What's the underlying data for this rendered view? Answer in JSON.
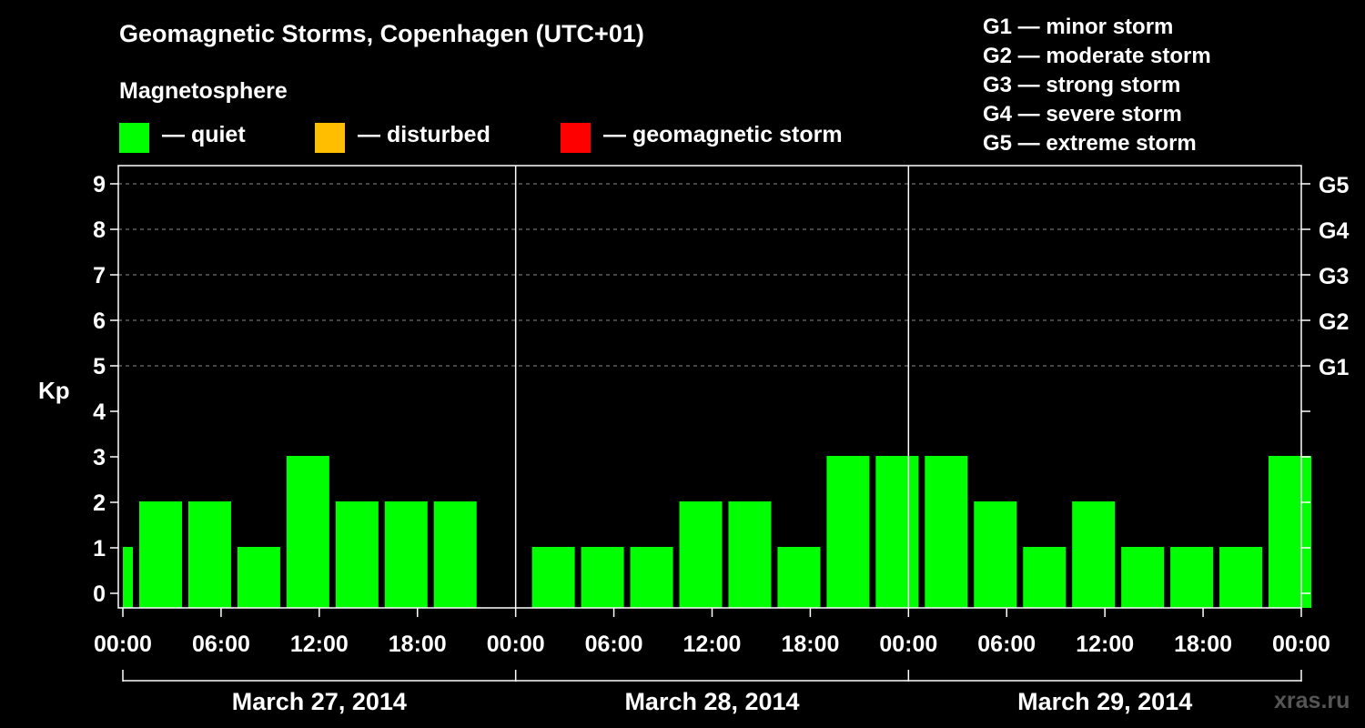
{
  "header": {
    "title": "Geomagnetic Storms, Copenhagen (UTC+01)",
    "legend_heading": "Magnetosphere"
  },
  "legend": [
    {
      "label": "— quiet",
      "color": "#00ff00"
    },
    {
      "label": "— disturbed",
      "color": "#ffbf00"
    },
    {
      "label": "— geomagnetic storm",
      "color": "#ff0000"
    }
  ],
  "storm_scale": [
    "G1 — minor storm",
    "G2 — moderate storm",
    "G3 — strong storm",
    "G4 — severe storm",
    "G5 — extreme storm"
  ],
  "watermark": "xras.ru",
  "chart_data": {
    "type": "bar",
    "ylabel": "Kp",
    "ylim": [
      0,
      9
    ],
    "yticks": [
      "0",
      "1",
      "2",
      "3",
      "4",
      "5",
      "6",
      "7",
      "8",
      "9"
    ],
    "right_ticks": [
      {
        "kp": 5,
        "label": "G1"
      },
      {
        "kp": 6,
        "label": "G2"
      },
      {
        "kp": 7,
        "label": "G3"
      },
      {
        "kp": 8,
        "label": "G4"
      },
      {
        "kp": 9,
        "label": "G5"
      }
    ],
    "grid": "dashed horizontal at Kp 5-9",
    "x_range_hours": [
      0,
      72
    ],
    "xticks": [
      {
        "hour": 0,
        "label": "00:00"
      },
      {
        "hour": 6,
        "label": "06:00"
      },
      {
        "hour": 12,
        "label": "12:00"
      },
      {
        "hour": 18,
        "label": "18:00"
      },
      {
        "hour": 24,
        "label": "00:00"
      },
      {
        "hour": 30,
        "label": "06:00"
      },
      {
        "hour": 36,
        "label": "12:00"
      },
      {
        "hour": 42,
        "label": "18:00"
      },
      {
        "hour": 48,
        "label": "00:00"
      },
      {
        "hour": 54,
        "label": "06:00"
      },
      {
        "hour": 60,
        "label": "12:00"
      },
      {
        "hour": 66,
        "label": "18:00"
      },
      {
        "hour": 72,
        "label": "00:00"
      }
    ],
    "days": [
      {
        "label": "March 27, 2014",
        "start_hour": 0
      },
      {
        "label": "March 28, 2014",
        "start_hour": 24
      },
      {
        "label": "March 29, 2014",
        "start_hour": 48
      }
    ],
    "bar_interval_hours": 3,
    "bars": [
      {
        "start": -2,
        "kp": 1
      },
      {
        "start": 1,
        "kp": 2
      },
      {
        "start": 4,
        "kp": 2
      },
      {
        "start": 7,
        "kp": 1
      },
      {
        "start": 10,
        "kp": 3
      },
      {
        "start": 13,
        "kp": 2
      },
      {
        "start": 16,
        "kp": 2
      },
      {
        "start": 19,
        "kp": 2
      },
      {
        "start": 25,
        "kp": 1
      },
      {
        "start": 28,
        "kp": 1
      },
      {
        "start": 31,
        "kp": 1
      },
      {
        "start": 34,
        "kp": 2
      },
      {
        "start": 37,
        "kp": 2
      },
      {
        "start": 40,
        "kp": 1
      },
      {
        "start": 43,
        "kp": 3
      },
      {
        "start": 46,
        "kp": 3
      },
      {
        "start": 49,
        "kp": 3
      },
      {
        "start": 52,
        "kp": 2
      },
      {
        "start": 55,
        "kp": 1
      },
      {
        "start": 58,
        "kp": 2
      },
      {
        "start": 61,
        "kp": 1
      },
      {
        "start": 64,
        "kp": 1
      },
      {
        "start": 67,
        "kp": 1
      },
      {
        "start": 70,
        "kp": 3
      }
    ]
  }
}
